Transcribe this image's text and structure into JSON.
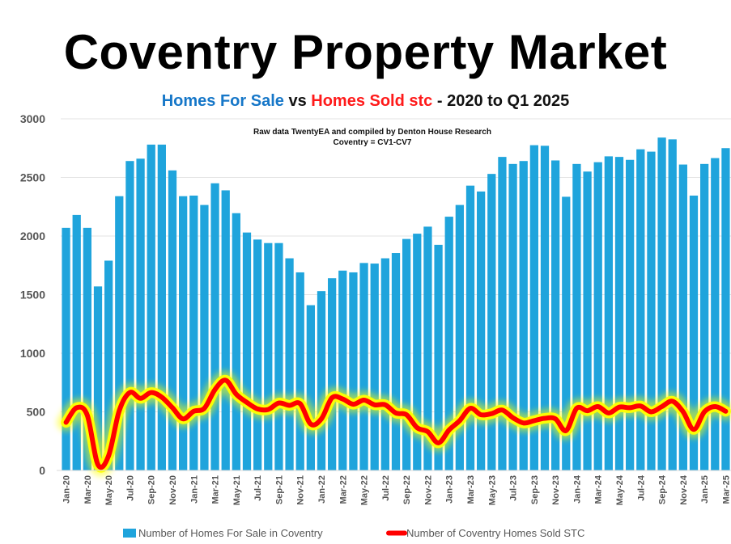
{
  "title": "Coventry Property Market",
  "subtitle": {
    "part1": "Homes For Sale",
    "part2": " vs ",
    "part3": "Homes Sold stc",
    "part4": " - 2020 to Q1 2025"
  },
  "annotation": {
    "line1": "Raw data TwentyEA and compiled by Denton House Research",
    "line2": "Coventry = CV1-CV7"
  },
  "chart_data": {
    "type": "bar",
    "ylim": [
      0,
      3000
    ],
    "yticks": [
      0,
      500,
      1000,
      1500,
      2000,
      2500,
      3000
    ],
    "grid": true,
    "legend_position": "bottom",
    "categories": [
      "Jan-20",
      "Feb-20",
      "Mar-20",
      "Apr-20",
      "May-20",
      "Jun-20",
      "Jul-20",
      "Aug-20",
      "Sep-20",
      "Oct-20",
      "Nov-20",
      "Dec-20",
      "Jan-21",
      "Feb-21",
      "Mar-21",
      "Apr-21",
      "May-21",
      "Jun-21",
      "Jul-21",
      "Aug-21",
      "Sep-21",
      "Oct-21",
      "Nov-21",
      "Dec-21",
      "Jan-22",
      "Feb-22",
      "Mar-22",
      "Apr-22",
      "May-22",
      "Jun-22",
      "Jul-22",
      "Aug-22",
      "Sep-22",
      "Oct-22",
      "Nov-22",
      "Dec-22",
      "Jan-23",
      "Feb-23",
      "Mar-23",
      "Apr-23",
      "May-23",
      "Jun-23",
      "Jul-23",
      "Aug-23",
      "Sep-23",
      "Oct-23",
      "Nov-23",
      "Dec-23",
      "Jan-24",
      "Feb-24",
      "Mar-24",
      "Apr-24",
      "May-24",
      "Jun-24",
      "Jul-24",
      "Aug-24",
      "Sep-24",
      "Oct-24",
      "Nov-24",
      "Dec-24",
      "Jan-25",
      "Feb-25",
      "Mar-25"
    ],
    "xtick_labels": [
      "Jan-20",
      "Mar-20",
      "May-20",
      "Jul-20",
      "Sep-20",
      "Nov-20",
      "Jan-21",
      "Mar-21",
      "May-21",
      "Jul-21",
      "Sep-21",
      "Nov-21",
      "Jan-22",
      "Mar-22",
      "May-22",
      "Jul-22",
      "Sep-22",
      "Nov-22",
      "Jan-23",
      "Mar-23",
      "May-23",
      "Jul-23",
      "Sep-23",
      "Nov-23",
      "Jan-24",
      "Mar-24",
      "May-24",
      "Jul-24",
      "Sep-24",
      "Nov-24",
      "Jan-25",
      "Mar-25"
    ],
    "series": [
      {
        "name": "Number of Homes For Sale in Coventry",
        "kind": "bar",
        "color": "#1fa4dc",
        "values": [
          2070,
          2180,
          2070,
          1570,
          1790,
          2340,
          2640,
          2660,
          2780,
          2780,
          2560,
          2340,
          2345,
          2265,
          2450,
          2390,
          2195,
          2030,
          1970,
          1940,
          1940,
          1810,
          1690,
          1410,
          1530,
          1640,
          1705,
          1690,
          1770,
          1765,
          1810,
          1855,
          1975,
          2020,
          2080,
          1925,
          2165,
          2265,
          2430,
          2380,
          2530,
          2675,
          2615,
          2640,
          2775,
          2770,
          2645,
          2335,
          2615,
          2550,
          2630,
          2680,
          2675,
          2650,
          2740,
          2720,
          2840,
          2825,
          2610,
          2345,
          2615,
          2665,
          2750
        ]
      },
      {
        "name": "Number of Coventry Homes Sold STC",
        "kind": "line",
        "color": "#ff0000",
        "glow": "#ffff00",
        "values": [
          410,
          535,
          470,
          50,
          125,
          510,
          665,
          615,
          665,
          625,
          535,
          440,
          505,
          530,
          690,
          770,
          650,
          580,
          525,
          520,
          575,
          555,
          570,
          395,
          440,
          620,
          610,
          565,
          600,
          560,
          560,
          490,
          475,
          365,
          330,
          235,
          345,
          425,
          530,
          475,
          485,
          515,
          450,
          405,
          425,
          445,
          440,
          340,
          530,
          510,
          545,
          490,
          540,
          535,
          550,
          500,
          545,
          590,
          500,
          350,
          500,
          545,
          505
        ]
      }
    ]
  }
}
